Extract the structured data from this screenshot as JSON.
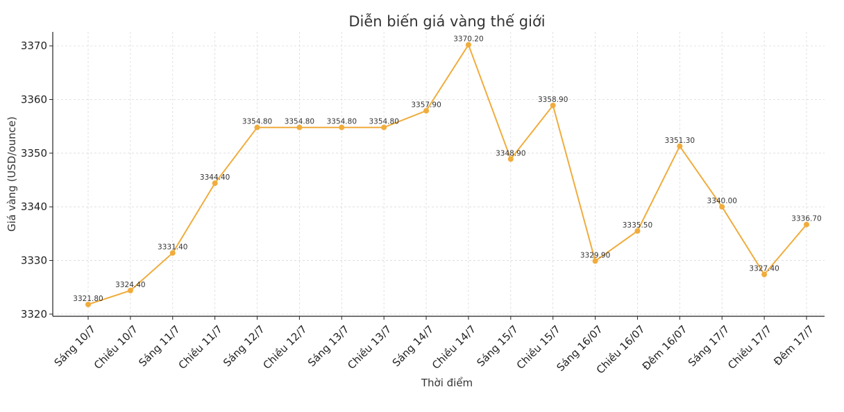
{
  "chart_data": {
    "type": "line",
    "title": "Diễn biến giá vàng thế giới",
    "xlabel": "Thời điểm",
    "ylabel": "Giá vàng (USD/ounce)",
    "categories": [
      "Sáng 10/7",
      "Chiều 10/7",
      "Sáng 11/7",
      "Chiều 11/7",
      "Sáng 12/7",
      "Chiều 12/7",
      "Sáng 13/7",
      "Chiều 13/7",
      "Sáng 14/7",
      "Chiều 14/7",
      "Sáng 15/7",
      "Chiều 15/7",
      "Sáng 16/07",
      "Chiều 16/07",
      "Đêm 16/07",
      "Sáng 17/7",
      "Chiều 17/7",
      "Đêm 17/7"
    ],
    "series": [
      {
        "values": [
          3321.8,
          3324.4,
          3331.4,
          3344.4,
          3354.8,
          3354.8,
          3354.8,
          3354.8,
          3357.9,
          3370.2,
          3348.9,
          3358.9,
          3329.9,
          3335.5,
          3351.3,
          3340.0,
          3327.4,
          3336.7
        ],
        "color": "#F0AC3C"
      }
    ],
    "data_labels": [
      "3321.80",
      "3324.40",
      "3331.40",
      "3344.40",
      "3354.80",
      "3354.80",
      "3354.80",
      "3354.80",
      "3357.90",
      "3370.20",
      "3348.90",
      "3358.90",
      "3329.90",
      "3335.50",
      "3351.30",
      "3340.00",
      "3327.40",
      "3336.70"
    ],
    "yticks": [
      3320,
      3330,
      3340,
      3350,
      3360,
      3370
    ],
    "ylim": [
      3319.6,
      3372.6
    ],
    "grid": true,
    "legend": "none"
  }
}
